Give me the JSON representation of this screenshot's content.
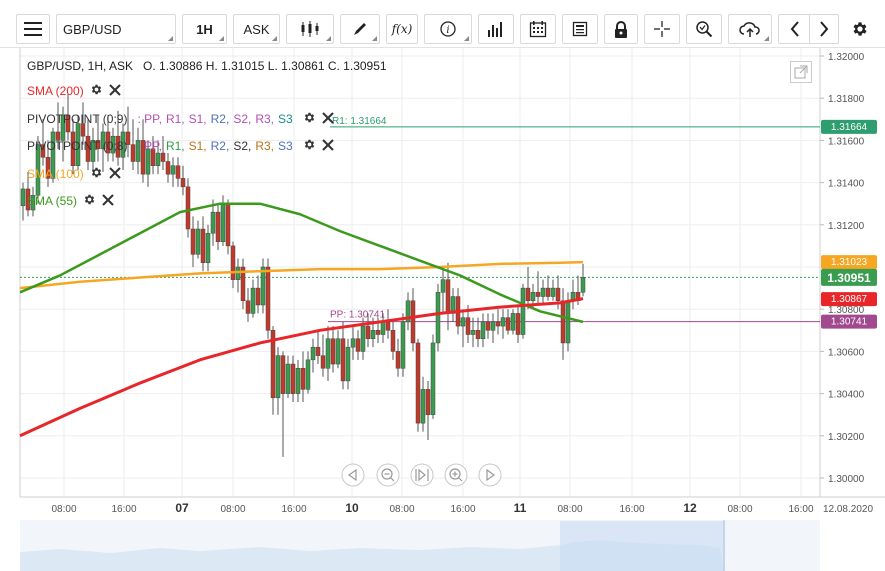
{
  "toolbar": {
    "symbol": "GBP/USD",
    "timeframe": "1H",
    "price_side": "ASK",
    "fx_label": "f(x)"
  },
  "chart_info": {
    "header": "GBP/USD, 1H, ASK   O. 1.30886 H. 1.31015 L. 1.30861 C. 1.30951"
  },
  "indicators": [
    {
      "label": "SMA (200)",
      "color": "#e8262a"
    },
    {
      "label": "PIVOTPOINT (0;9)",
      "color": "#333333",
      "levels": [
        {
          "text": ": PP,",
          "color": "#b24fb6"
        },
        {
          "text": "R1,",
          "color": "#b24fb6"
        },
        {
          "text": "S1,",
          "color": "#b24fb6"
        },
        {
          "text": "R2,",
          "color": "#4f6fbf"
        },
        {
          "text": "S2,",
          "color": "#b24fb6"
        },
        {
          "text": "R3,",
          "color": "#b24fb6"
        },
        {
          "text": "S3",
          "color": "#1a8f8a"
        }
      ]
    },
    {
      "label": "PIVOTPOINT (0;8)",
      "color": "#333333",
      "levels": [
        {
          "text": ": PP,",
          "color": "#b24fb6"
        },
        {
          "text": "R1,",
          "color": "#2e9d45"
        },
        {
          "text": "S1,",
          "color": "#b8741a"
        },
        {
          "text": "R2,",
          "color": "#4f6fbf"
        },
        {
          "text": "S2,",
          "color": "#333333"
        },
        {
          "text": "R3,",
          "color": "#b8741a"
        },
        {
          "text": "S3",
          "color": "#4f6fbf"
        }
      ]
    },
    {
      "label": "SMA (100)",
      "color": "#f5a623"
    },
    {
      "label": "SMA (55)",
      "color": "#3b9a1e"
    }
  ],
  "line_labels": {
    "r1": "R1: 1.31664",
    "pp": "PP: 1.30741"
  },
  "price_axis": {
    "ticks": [
      "1.32000",
      "1.31800",
      "1.31600",
      "1.31400",
      "1.31200",
      "1.31023",
      "1.30951",
      "1.30867",
      "1.30800",
      "1.30741",
      "1.30600",
      "1.30400",
      "1.30200",
      "1.30000"
    ],
    "tags": [
      {
        "value": "1.31664",
        "bg": "#2e9d6f"
      },
      {
        "value": "1.31023",
        "bg": "#f5a623"
      },
      {
        "value": "1.30951",
        "bg": "#3a9c4f"
      },
      {
        "value": "1.30867",
        "bg": "#e8262a"
      },
      {
        "value": "1.30741",
        "bg": "#a2488e"
      }
    ]
  },
  "time_axis": {
    "labels": [
      "08:00",
      "16:00",
      "07",
      "08:00",
      "16:00",
      "10",
      "08:00",
      "16:00",
      "11",
      "08:00",
      "16:00",
      "12",
      "08:00",
      "16:00",
      "12.08.2020"
    ]
  },
  "colors": {
    "bull": "#3a9c4f",
    "bear": "#c0392b",
    "sma200": "#e8262a",
    "sma100": "#f5a623",
    "sma55": "#3b9a1e",
    "r1": "#2e9d6f",
    "pp": "#a2488e"
  },
  "icons": [
    "menu-icon",
    "candles-icon",
    "pen-icon",
    "info-icon",
    "volume-icon",
    "calendar-icon",
    "news-icon",
    "lock-icon",
    "crosshair-icon",
    "zoom-icon",
    "cloud-upload-icon",
    "chevron-left-icon",
    "chevron-right-icon",
    "gear-icon"
  ]
}
